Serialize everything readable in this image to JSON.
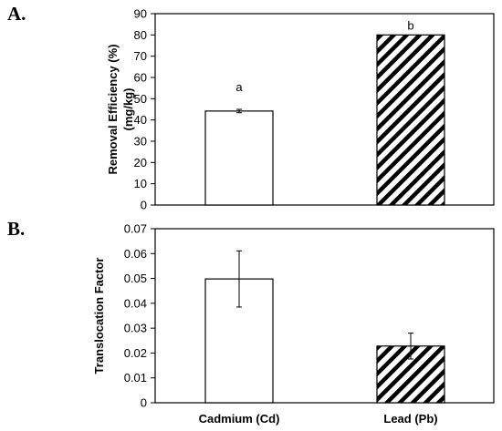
{
  "chart_data": [
    {
      "type": "bar",
      "panel_label": "A.",
      "categories": [
        "Cadmium (Cd)",
        "Lead (Pb)"
      ],
      "values": [
        44.2,
        80
      ],
      "errors": [
        0.8,
        0
      ],
      "annotations": [
        "a",
        "b"
      ],
      "bar_fills": [
        "solid-white",
        "diagonal-hatch"
      ],
      "ylabel_lines": [
        "Removal Efficiency (%)",
        "(mg/kg)"
      ],
      "ylim": [
        0,
        90
      ],
      "yticks": [
        0,
        10,
        20,
        30,
        40,
        50,
        60,
        70,
        80,
        90
      ],
      "ytick_labels": [
        "0",
        "10",
        "20",
        "30",
        "40",
        "50",
        "60",
        "70",
        "80",
        "90"
      ],
      "show_category_labels": false,
      "grid": false
    },
    {
      "type": "bar",
      "panel_label": "B.",
      "categories": [
        "Cadmium (Cd)",
        "Lead (Pb)"
      ],
      "values": [
        0.0498,
        0.0228
      ],
      "errors": [
        0.0113,
        0.0052
      ],
      "bar_fills": [
        "solid-white",
        "diagonal-hatch"
      ],
      "ylabel": "Translocation Factor",
      "ylim": [
        0,
        0.07
      ],
      "yticks": [
        0,
        0.01,
        0.02,
        0.03,
        0.04,
        0.05,
        0.06,
        0.07
      ],
      "ytick_labels": [
        "0",
        "0.01",
        "0.02",
        "0.03",
        "0.04",
        "0.05",
        "0.06",
        "0.07"
      ],
      "show_category_labels": true,
      "grid": false
    }
  ]
}
